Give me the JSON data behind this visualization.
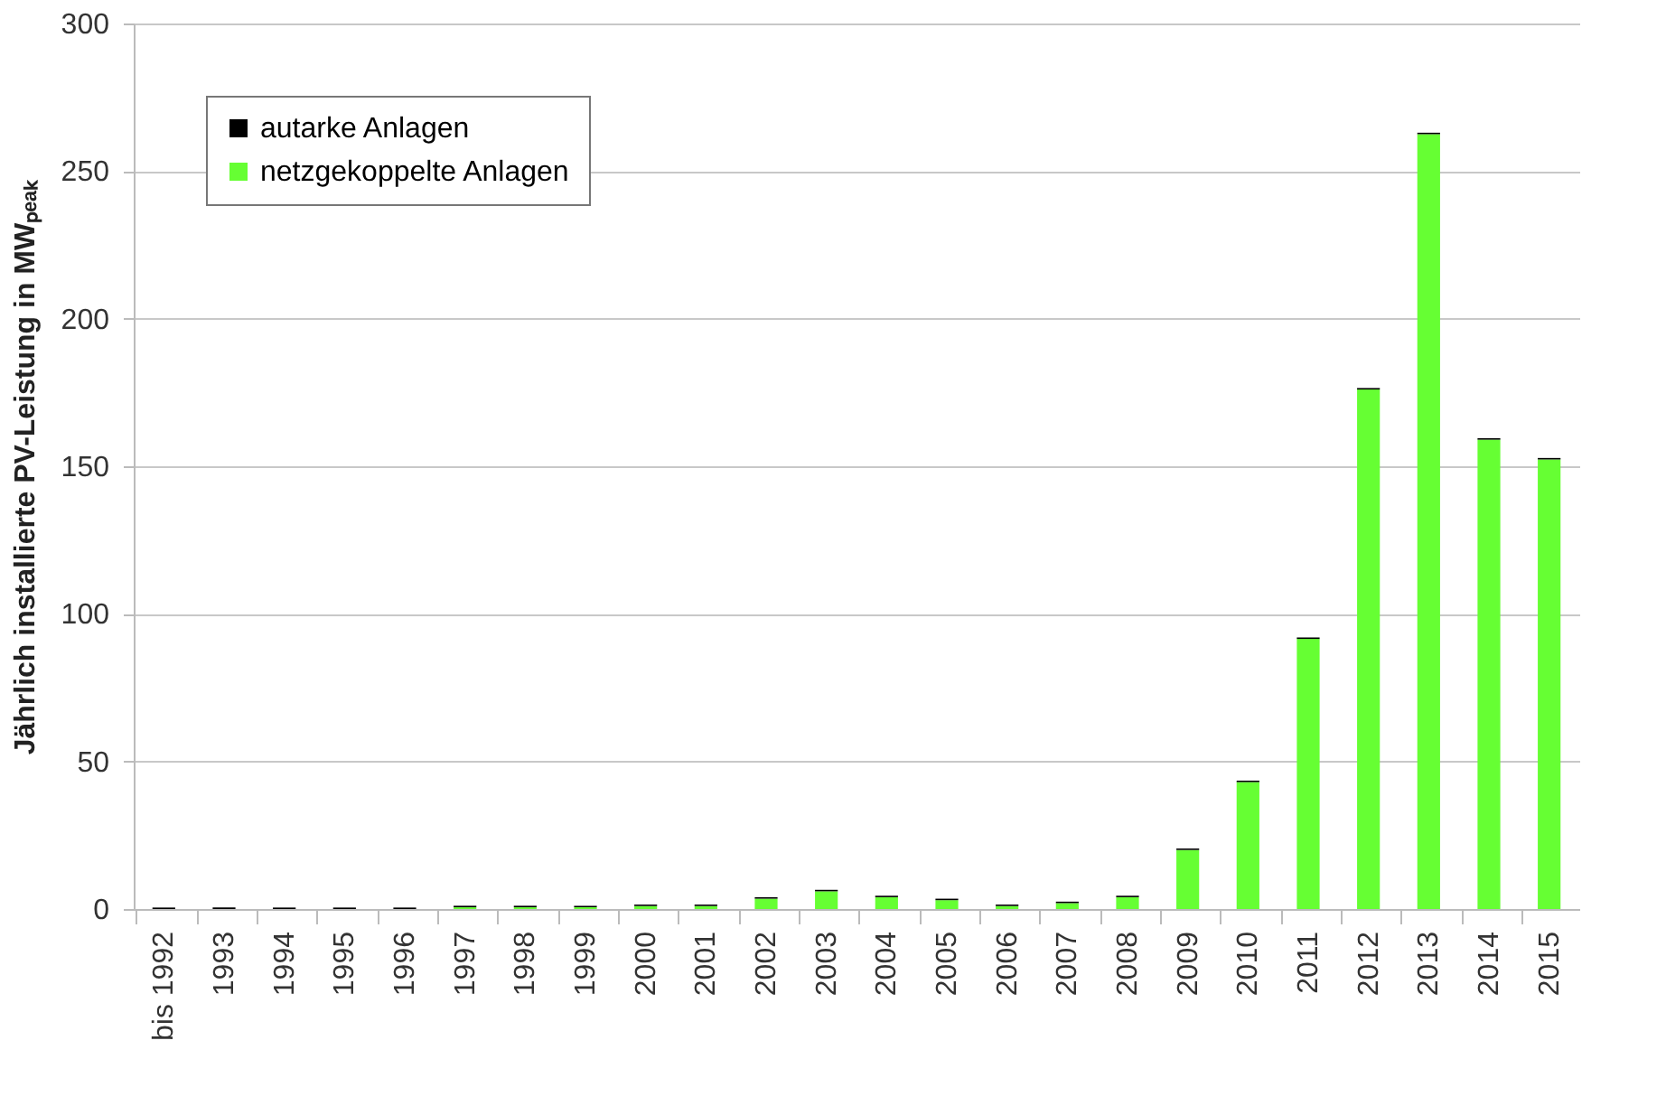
{
  "chart_data": {
    "type": "bar",
    "stacked": true,
    "ylabel": "Jährlich installierte PV-Leistung in MWₚₑₐₖ",
    "categories": [
      "bis 1992",
      "1993",
      "1994",
      "1995",
      "1996",
      "1997",
      "1998",
      "1999",
      "2000",
      "2001",
      "2002",
      "2003",
      "2004",
      "2005",
      "2006",
      "2007",
      "2008",
      "2009",
      "2010",
      "2011",
      "2012",
      "2013",
      "2014",
      "2015"
    ],
    "series": [
      {
        "name": "netzgekoppelte Anlagen",
        "color": "#66ff33",
        "values": [
          null,
          null,
          null,
          null,
          null,
          0.6,
          0.6,
          0.6,
          1,
          1,
          3.5,
          6,
          4,
          3,
          1,
          2,
          4,
          20,
          43,
          91.5,
          176,
          262.5,
          159,
          152.3
        ]
      },
      {
        "name": "autarke Anlagen",
        "color": "#000000",
        "values": [
          0.5,
          0.5,
          0.5,
          0.5,
          0.5,
          0.5,
          0.5,
          0.5,
          0.5,
          0.5,
          0.5,
          0.5,
          0.5,
          0.5,
          0.5,
          0.5,
          0.5,
          0.5,
          0.5,
          0.5,
          0.5,
          0.5,
          0.5,
          0.5
        ]
      }
    ],
    "ylim": [
      0,
      300
    ],
    "yticks": [
      0,
      50,
      100,
      150,
      200,
      250,
      300
    ],
    "grid": "y",
    "legend": "top left"
  }
}
